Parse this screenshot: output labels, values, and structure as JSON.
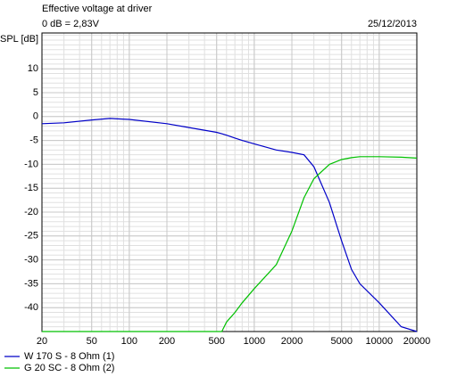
{
  "chart_data": {
    "type": "line",
    "title": "Effective voltage at driver",
    "subtitle": "0 dB = 2,83V",
    "date": "25/12/2013",
    "y_label": "SPL [dB]",
    "x_scale": "log",
    "grid": true,
    "legend": "bottom-left",
    "xlim": [
      20,
      20000
    ],
    "xticks": [
      20,
      50,
      100,
      200,
      500,
      1000,
      2000,
      5000,
      10000,
      20000
    ],
    "ylim": [
      -45,
      17.5
    ],
    "yticks": [
      10,
      5,
      0,
      -5,
      -10,
      -15,
      -20,
      -25,
      -30,
      -35,
      -40
    ],
    "x": [
      20,
      30,
      50,
      70,
      100,
      200,
      300,
      500,
      550,
      600,
      700,
      800,
      1000,
      1500,
      2000,
      2500,
      3000,
      4000,
      5000,
      6000,
      7000,
      10000,
      15000,
      20000
    ],
    "series": [
      {
        "name": "W 170 S - 8 Ohm (1)",
        "color": "#0000c8",
        "values": [
          -1.5,
          -1.3,
          -0.7,
          -0.4,
          -0.6,
          -1.5,
          -2.3,
          -3.3,
          -3.6,
          -3.9,
          -4.5,
          -5,
          -5.7,
          -7,
          -7.5,
          -8,
          -10.5,
          -18,
          -26,
          -32,
          -35,
          -39,
          -44,
          -45
        ]
      },
      {
        "name": "G 20 SC - 8 Ohm (2)",
        "color": "#00c000",
        "values": [
          -45,
          -45,
          -45,
          -45,
          -45,
          -45,
          -45,
          -45,
          -45,
          -43,
          -41,
          -39,
          -36,
          -31,
          -24,
          -17,
          -13,
          -10,
          -9,
          -8.6,
          -8.4,
          -8.4,
          -8.5,
          -8.7
        ]
      }
    ]
  }
}
